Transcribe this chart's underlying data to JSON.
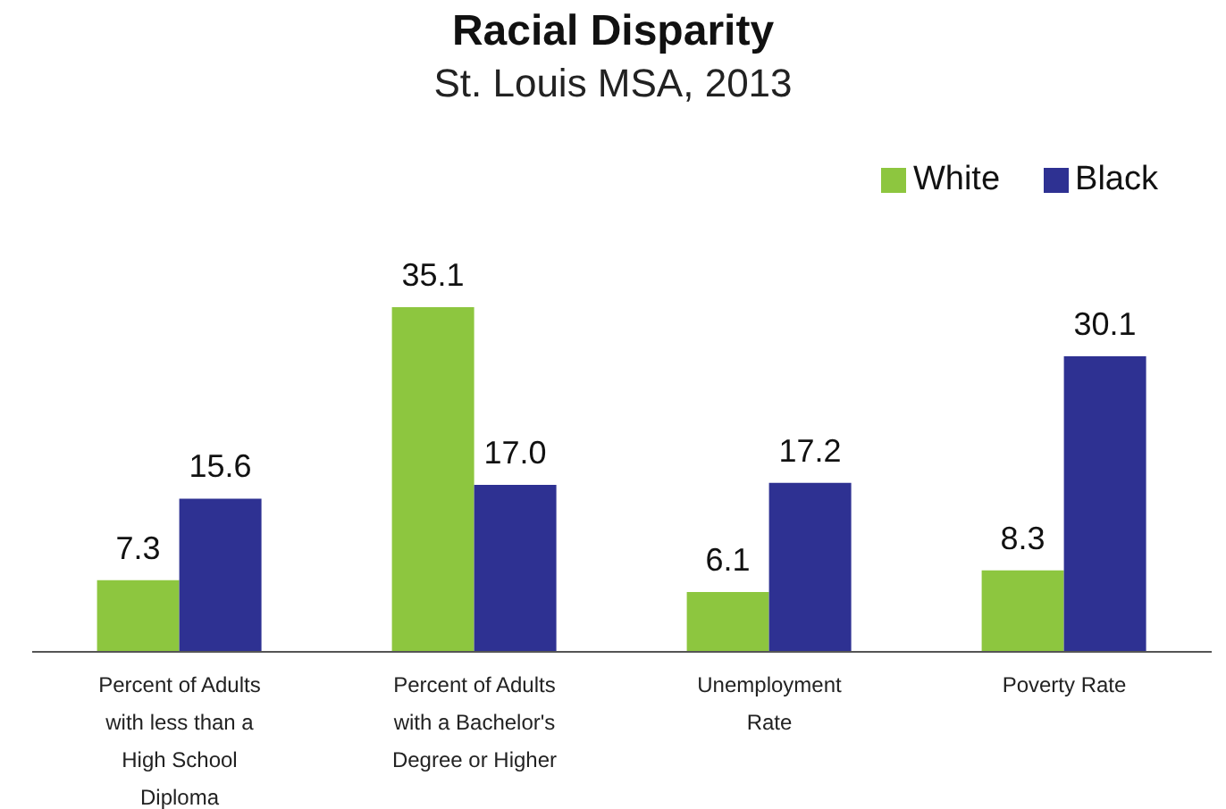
{
  "chart_data": {
    "type": "bar",
    "title": "Racial Disparity",
    "subtitle": "St. Louis MSA, 2013",
    "categories": [
      "Percent of Adults with less than a High School Diploma",
      "Percent of Adults with a Bachelor's Degree or Higher",
      "Unemployment Rate",
      "Poverty Rate"
    ],
    "series": [
      {
        "name": "White",
        "color": "#8dc63f",
        "values": [
          7.3,
          35.1,
          6.1,
          8.3
        ],
        "value_labels": [
          "7.3",
          "35.1",
          "6.1",
          "8.3"
        ]
      },
      {
        "name": "Black",
        "color": "#2e3192",
        "values": [
          15.6,
          17.0,
          17.2,
          30.1
        ],
        "value_labels": [
          "15.6",
          "17.0",
          "17.2",
          "30.1"
        ]
      }
    ],
    "legend": "top right",
    "grid": false
  }
}
